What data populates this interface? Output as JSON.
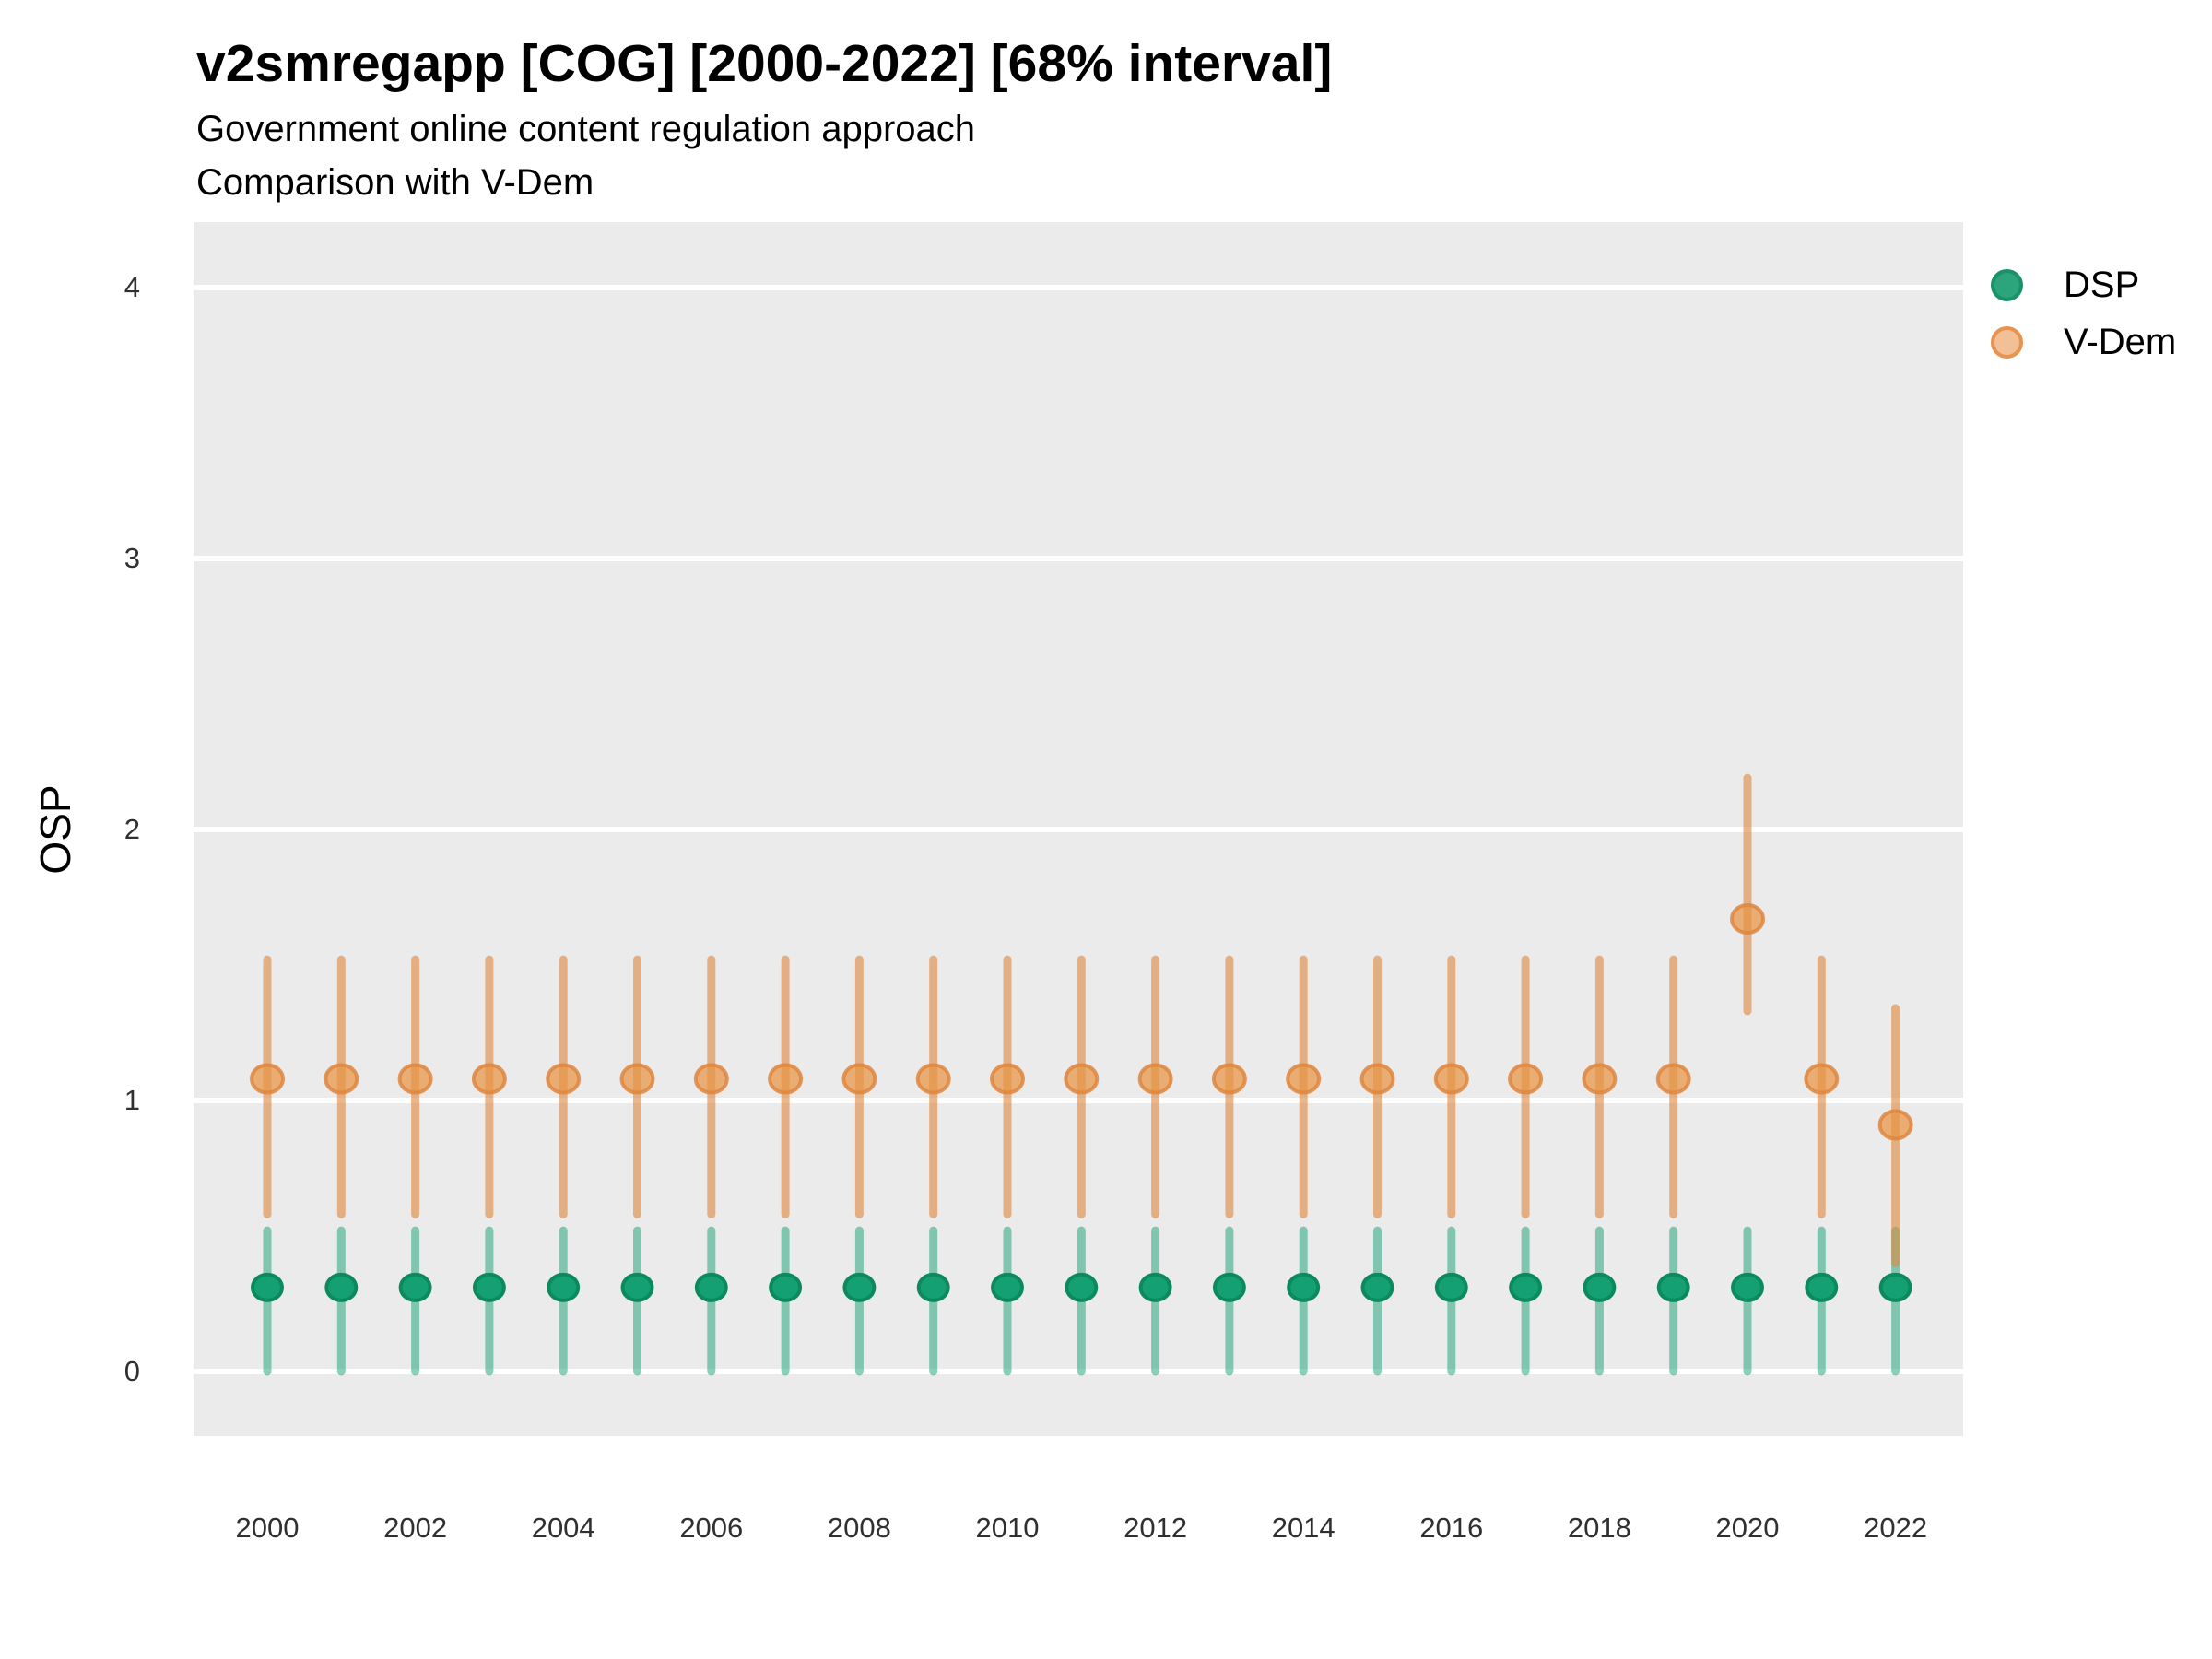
{
  "header": {
    "title": "v2smregapp [COG] [2000-2022] [68% interval]",
    "subtitle1": "Government online content regulation approach",
    "subtitle2": "Comparison with V-Dem"
  },
  "y_axis": {
    "label": "OSP",
    "ticks": [
      "0",
      "1",
      "2",
      "3",
      "4"
    ]
  },
  "x_axis": {
    "ticks": [
      "2000",
      "2002",
      "2004",
      "2006",
      "2008",
      "2010",
      "2012",
      "2014",
      "2016",
      "2018",
      "2020",
      "2022"
    ]
  },
  "legend": {
    "items": [
      {
        "label": "DSP",
        "fill": "#2CA47C",
        "border": "#1A9168"
      },
      {
        "label": "V-Dem",
        "fill": "#F2C096",
        "border": "#E89350"
      }
    ]
  },
  "colors": {
    "panel_background": "#EBEBEB",
    "gridline": "#FFFFFF",
    "dsp_point_fill": "#14A072",
    "dsp_point_border": "#0C8A5E",
    "dsp_bar": "rgba(20,160,115,0.5)",
    "vdem_point_fill": "rgba(232,148,68,0.72)",
    "vdem_point_border": "rgba(222,134,64,0.85)",
    "vdem_bar": "rgba(222,139,66,0.62)"
  },
  "chart_data": {
    "type": "scatter",
    "title": "v2smregapp [COG] [2000-2022] [68% interval]",
    "subtitle": [
      "Government online content regulation approach",
      "Comparison with V-Dem"
    ],
    "ylabel": "OSP",
    "xlabel": "",
    "interval": "68%",
    "ylim": [
      -0.3,
      4.25
    ],
    "yticks": [
      0,
      1,
      2,
      3,
      4
    ],
    "xticks": [
      2000,
      2002,
      2004,
      2006,
      2008,
      2010,
      2012,
      2014,
      2016,
      2018,
      2020,
      2022
    ],
    "grid": "major-horizontal-only",
    "legend_position": "right-top",
    "series": [
      {
        "name": "DSP",
        "points": [
          {
            "year": 2000,
            "est": 0.31,
            "lo": 0.0,
            "hi": 0.52
          },
          {
            "year": 2001,
            "est": 0.31,
            "lo": 0.0,
            "hi": 0.52
          },
          {
            "year": 2002,
            "est": 0.31,
            "lo": 0.0,
            "hi": 0.52
          },
          {
            "year": 2003,
            "est": 0.31,
            "lo": 0.0,
            "hi": 0.52
          },
          {
            "year": 2004,
            "est": 0.31,
            "lo": 0.0,
            "hi": 0.52
          },
          {
            "year": 2005,
            "est": 0.31,
            "lo": 0.0,
            "hi": 0.52
          },
          {
            "year": 2006,
            "est": 0.31,
            "lo": 0.0,
            "hi": 0.52
          },
          {
            "year": 2007,
            "est": 0.31,
            "lo": 0.0,
            "hi": 0.52
          },
          {
            "year": 2008,
            "est": 0.31,
            "lo": 0.0,
            "hi": 0.52
          },
          {
            "year": 2009,
            "est": 0.31,
            "lo": 0.0,
            "hi": 0.52
          },
          {
            "year": 2010,
            "est": 0.31,
            "lo": 0.0,
            "hi": 0.52
          },
          {
            "year": 2011,
            "est": 0.31,
            "lo": 0.0,
            "hi": 0.52
          },
          {
            "year": 2012,
            "est": 0.31,
            "lo": 0.0,
            "hi": 0.52
          },
          {
            "year": 2013,
            "est": 0.31,
            "lo": 0.0,
            "hi": 0.52
          },
          {
            "year": 2014,
            "est": 0.31,
            "lo": 0.0,
            "hi": 0.52
          },
          {
            "year": 2015,
            "est": 0.31,
            "lo": 0.0,
            "hi": 0.52
          },
          {
            "year": 2016,
            "est": 0.31,
            "lo": 0.0,
            "hi": 0.52
          },
          {
            "year": 2017,
            "est": 0.31,
            "lo": 0.0,
            "hi": 0.52
          },
          {
            "year": 2018,
            "est": 0.31,
            "lo": 0.0,
            "hi": 0.52
          },
          {
            "year": 2019,
            "est": 0.31,
            "lo": 0.0,
            "hi": 0.52
          },
          {
            "year": 2020,
            "est": 0.31,
            "lo": 0.0,
            "hi": 0.52
          },
          {
            "year": 2021,
            "est": 0.31,
            "lo": 0.0,
            "hi": 0.52
          },
          {
            "year": 2022,
            "est": 0.31,
            "lo": 0.0,
            "hi": 0.52
          }
        ]
      },
      {
        "name": "V-Dem",
        "points": [
          {
            "year": 2000,
            "est": 1.08,
            "lo": 0.58,
            "hi": 1.52
          },
          {
            "year": 2001,
            "est": 1.08,
            "lo": 0.58,
            "hi": 1.52
          },
          {
            "year": 2002,
            "est": 1.08,
            "lo": 0.58,
            "hi": 1.52
          },
          {
            "year": 2003,
            "est": 1.08,
            "lo": 0.58,
            "hi": 1.52
          },
          {
            "year": 2004,
            "est": 1.08,
            "lo": 0.58,
            "hi": 1.52
          },
          {
            "year": 2005,
            "est": 1.08,
            "lo": 0.58,
            "hi": 1.52
          },
          {
            "year": 2006,
            "est": 1.08,
            "lo": 0.58,
            "hi": 1.52
          },
          {
            "year": 2007,
            "est": 1.08,
            "lo": 0.58,
            "hi": 1.52
          },
          {
            "year": 2008,
            "est": 1.08,
            "lo": 0.58,
            "hi": 1.52
          },
          {
            "year": 2009,
            "est": 1.08,
            "lo": 0.58,
            "hi": 1.52
          },
          {
            "year": 2010,
            "est": 1.08,
            "lo": 0.58,
            "hi": 1.52
          },
          {
            "year": 2011,
            "est": 1.08,
            "lo": 0.58,
            "hi": 1.52
          },
          {
            "year": 2012,
            "est": 1.08,
            "lo": 0.58,
            "hi": 1.52
          },
          {
            "year": 2013,
            "est": 1.08,
            "lo": 0.58,
            "hi": 1.52
          },
          {
            "year": 2014,
            "est": 1.08,
            "lo": 0.58,
            "hi": 1.52
          },
          {
            "year": 2015,
            "est": 1.08,
            "lo": 0.58,
            "hi": 1.52
          },
          {
            "year": 2016,
            "est": 1.08,
            "lo": 0.58,
            "hi": 1.52
          },
          {
            "year": 2017,
            "est": 1.08,
            "lo": 0.58,
            "hi": 1.52
          },
          {
            "year": 2018,
            "est": 1.08,
            "lo": 0.58,
            "hi": 1.52
          },
          {
            "year": 2019,
            "est": 1.08,
            "lo": 0.58,
            "hi": 1.52
          },
          {
            "year": 2020,
            "est": 1.67,
            "lo": 1.33,
            "hi": 2.19
          },
          {
            "year": 2021,
            "est": 1.08,
            "lo": 0.58,
            "hi": 1.52
          },
          {
            "year": 2022,
            "est": 0.91,
            "lo": 0.4,
            "hi": 1.34
          }
        ]
      }
    ]
  }
}
